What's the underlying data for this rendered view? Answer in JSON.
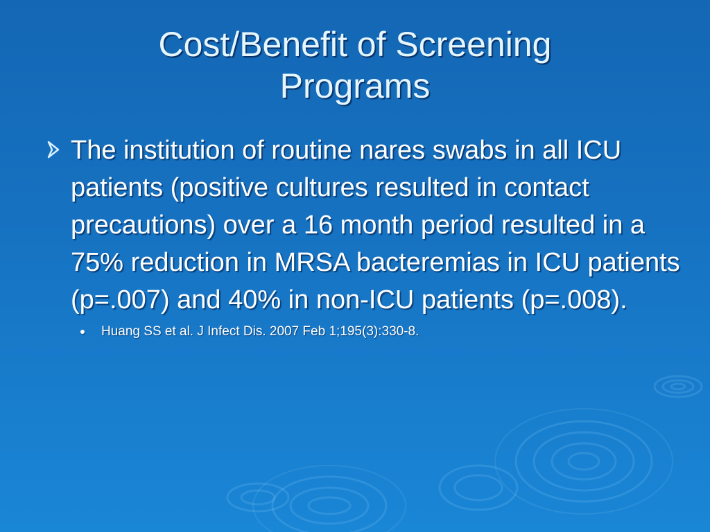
{
  "slide": {
    "title_lines": [
      "Cost/Benefit of Screening",
      "Programs"
    ],
    "main_bullet": "The institution of routine nares swabs in all ICU patients (positive cultures resulted in contact precautions) over a 16 month period resulted in a 75% reduction in MRSA bacteremias in ICU patients (p=.007) and 40% in non-ICU patients (p=.008).",
    "citation": "Huang SS et al. J Infect Dis. 2007 Feb 1;195(3):330-8."
  },
  "icons": {
    "main_bullet": "arrow-bullet-icon",
    "sub_bullet": "round-bullet-icon"
  },
  "colors": {
    "background_top": "#1467b4",
    "background_bottom": "#1a86d6",
    "title_text": "#e6f6ff",
    "body_text": "#ffffff",
    "arrow_bullet": "#d9f1ff"
  }
}
